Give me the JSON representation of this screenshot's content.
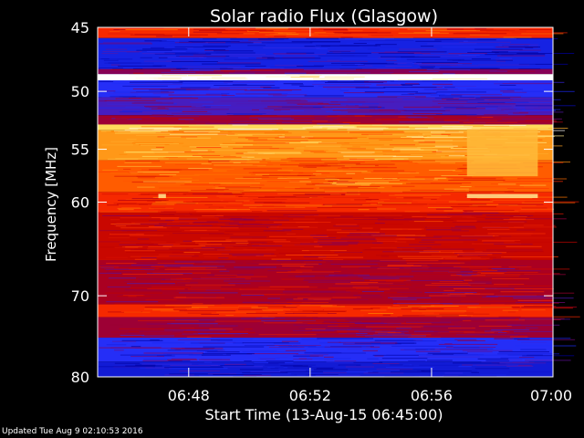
{
  "chart_data": {
    "type": "heatmap",
    "title": "Solar radio Flux (Glasgow)",
    "xlabel": "Start Time (13-Aug-15 06:45:00)",
    "ylabel": "Frequency [MHz]",
    "x_range": [
      "06:45",
      "07:00"
    ],
    "xticks": [
      "06:48",
      "06:52",
      "06:56",
      "07:00"
    ],
    "y_range": [
      45,
      80
    ],
    "y_scale": "log",
    "yticks": [
      45,
      50,
      55,
      60,
      70,
      80
    ],
    "colormap": [
      "#0000a0",
      "#2030ff",
      "#800060",
      "#c00000",
      "#ff3000",
      "#ff8000",
      "#ffe060",
      "#ffffff"
    ],
    "bands": [
      {
        "fmin": 45.0,
        "fmax": 45.8,
        "level": 0.55
      },
      {
        "fmin": 45.8,
        "fmax": 48.2,
        "level": 0.1
      },
      {
        "fmin": 48.2,
        "fmax": 48.6,
        "level": 0.3
      },
      {
        "fmin": 48.6,
        "fmax": 49.1,
        "level": 1.0
      },
      {
        "fmin": 49.1,
        "fmax": 50.5,
        "level": 0.15
      },
      {
        "fmin": 50.5,
        "fmax": 52.0,
        "level": 0.2
      },
      {
        "fmin": 52.0,
        "fmax": 52.8,
        "level": 0.35
      },
      {
        "fmin": 52.8,
        "fmax": 53.3,
        "level": 0.85
      },
      {
        "fmin": 53.3,
        "fmax": 56.0,
        "level": 0.75
      },
      {
        "fmin": 56.0,
        "fmax": 59.0,
        "level": 0.65
      },
      {
        "fmin": 59.0,
        "fmax": 61.0,
        "level": 0.55
      },
      {
        "fmin": 61.0,
        "fmax": 66.0,
        "level": 0.45
      },
      {
        "fmin": 66.0,
        "fmax": 71.0,
        "level": 0.38
      },
      {
        "fmin": 71.0,
        "fmax": 72.5,
        "level": 0.55
      },
      {
        "fmin": 72.5,
        "fmax": 75.0,
        "level": 0.35
      },
      {
        "fmin": 75.0,
        "fmax": 78.0,
        "level": 0.15
      },
      {
        "fmin": 78.0,
        "fmax": 80.0,
        "level": 0.08
      }
    ],
    "events": [
      {
        "t0": "06:57:10",
        "t1": "06:59:30",
        "fmin": 53.2,
        "fmax": 57.5,
        "level": 0.8
      },
      {
        "t0": "06:57:10",
        "t1": "06:59:30",
        "fmin": 59.2,
        "fmax": 59.6,
        "level": 0.9
      },
      {
        "t0": "06:47:00",
        "t1": "06:47:15",
        "fmin": 59.2,
        "fmax": 59.6,
        "level": 0.9
      }
    ]
  },
  "footer": {
    "updated": "Updated Tue Aug  9 02:10:53 2016"
  }
}
